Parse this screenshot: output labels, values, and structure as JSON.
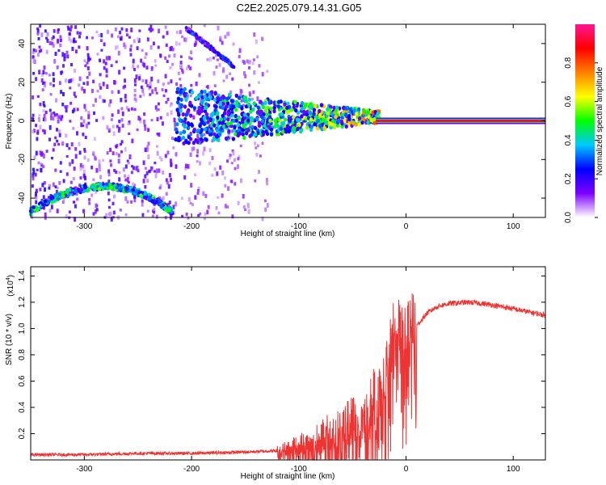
{
  "figure_title": "C2E2.2025.079.14.31.G05",
  "chart_data": [
    {
      "type": "heatmap",
      "title": "C2E2.2025.079.14.31.G05",
      "xlabel": "Height of straight line (km)",
      "ylabel": "Frequency (Hz)",
      "xlim": [
        -350,
        130
      ],
      "ylim": [
        -50,
        50
      ],
      "x_ticks": [
        -300,
        -200,
        -100,
        0,
        100
      ],
      "x_tick_labels": [
        "-300",
        "-200",
        "-100",
        "0",
        "100"
      ],
      "y_ticks": [
        -40,
        -20,
        0,
        20,
        40
      ],
      "y_tick_labels": [
        "-40",
        "-20",
        "0",
        "20",
        "40"
      ],
      "colorbar": {
        "label": "Normalized spectral amplitude",
        "range": [
          0,
          1
        ],
        "ticks": [
          0.0,
          0.2,
          0.4,
          0.6,
          0.8
        ],
        "tick_labels": [
          "0.0",
          "0.2",
          "0.4",
          "0.6",
          "0.8"
        ],
        "colors": [
          "#ffffff",
          "#7f00ff",
          "#0000ff",
          "#00c8ff",
          "#00ff00",
          "#ffff00",
          "#ff8000",
          "#ff0000",
          "#ff1493"
        ]
      },
      "features": [
        {
          "kind": "steady_tone",
          "x_start": -28,
          "x_end": 130,
          "frequency": 0,
          "amplitude": 0.92
        },
        {
          "kind": "noisy_band",
          "x_start": -215,
          "x_end": -25,
          "frequency": 2,
          "amplitude": 0.5
        },
        {
          "kind": "arc",
          "x_start": -350,
          "x_end": -218,
          "x_peak": -280,
          "peak_frequency": -34,
          "end_frequency": -47,
          "amplitude": 0.45
        },
        {
          "kind": "diagonal",
          "x_start": -205,
          "x_end": -160,
          "f_start": 48,
          "f_end": 28,
          "amplitude": 0.25
        },
        {
          "kind": "background_noise",
          "x_start": -350,
          "x_end": -130,
          "amplitude": 0.15
        }
      ]
    },
    {
      "type": "line",
      "xlabel": "Height of straight line (km)",
      "ylabel": "SNR (10 * v/v)",
      "y_multiplier_label": "(x10",
      "y_multiplier_exp": "4",
      "y_multiplier_close": ")",
      "xlim": [
        -350,
        130
      ],
      "ylim": [
        0,
        1.47
      ],
      "x_ticks": [
        -300,
        -200,
        -100,
        0,
        100
      ],
      "x_tick_labels": [
        "-300",
        "-200",
        "-100",
        "0",
        "100"
      ],
      "y_ticks": [
        0.2,
        0.4,
        0.6,
        0.8,
        1.0,
        1.2,
        1.4
      ],
      "y_tick_labels": [
        "0.2",
        "0.4",
        "0.6",
        "0.8",
        "1.0",
        "1.2",
        "1.4"
      ],
      "series": [
        {
          "color": "#ee3333",
          "x": [
            -350,
            -300,
            -250,
            -200,
            -150,
            -120,
            -100,
            -80,
            -60,
            -40,
            -30,
            -20,
            -12,
            -10,
            -5,
            0,
            10,
            20,
            30,
            40,
            60,
            80,
            100,
            130
          ],
          "y": [
            0.04,
            0.04,
            0.05,
            0.05,
            0.06,
            0.07,
            0.12,
            0.18,
            0.25,
            0.35,
            0.48,
            0.62,
            0.95,
            1.1,
            0.9,
            0.88,
            1.02,
            1.12,
            1.17,
            1.19,
            1.2,
            1.18,
            1.15,
            1.1
          ]
        }
      ]
    }
  ]
}
